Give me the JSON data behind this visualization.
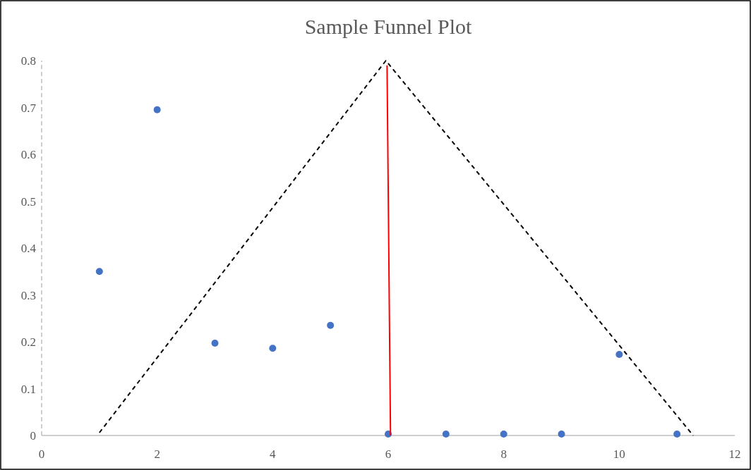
{
  "chart_data": {
    "type": "scatter",
    "title": "Sample Funnel Plot",
    "xlim": [
      0,
      12
    ],
    "xticks": [
      0,
      2,
      4,
      6,
      8,
      10,
      12
    ],
    "ylim": [
      0,
      0.8
    ],
    "yticks": [
      0,
      0.1,
      0.2,
      0.3,
      0.4,
      0.5,
      0.6,
      0.7,
      0.8
    ],
    "grid": false,
    "marker": "circle",
    "series": [
      {
        "color": "#4472c4",
        "x": [
          1,
          2,
          3,
          4,
          5,
          6,
          7,
          8,
          9,
          10,
          11
        ],
        "values": [
          0.35,
          0.695,
          0.197,
          0.186,
          0.235,
          0.003,
          0.003,
          0.003,
          0.003,
          0.173,
          0.003
        ]
      },
      {
        "type": "line",
        "color": "#000000",
        "line_style": "dashed",
        "marker": "none",
        "x": [
          1,
          5.96,
          11.28
        ],
        "values": [
          0.006,
          0.8,
          0
        ]
      },
      {
        "type": "line",
        "color": "#ff0000",
        "line_style": "solid",
        "marker": "none",
        "x": [
          5.98,
          6.04
        ],
        "values": [
          0.79,
          0
        ]
      }
    ]
  }
}
